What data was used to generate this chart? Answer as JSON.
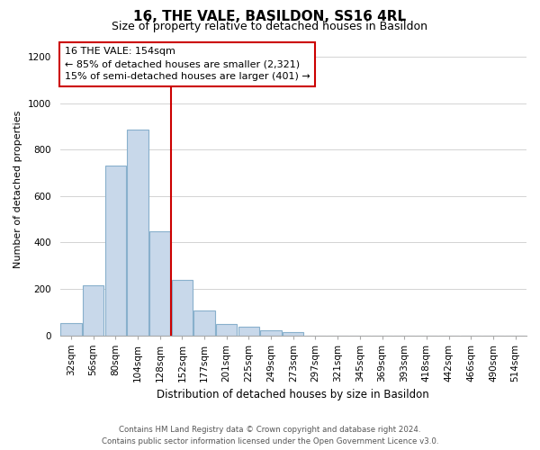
{
  "title": "16, THE VALE, BASILDON, SS16 4RL",
  "subtitle": "Size of property relative to detached houses in Basildon",
  "xlabel": "Distribution of detached houses by size in Basildon",
  "ylabel": "Number of detached properties",
  "bar_labels": [
    "32sqm",
    "56sqm",
    "80sqm",
    "104sqm",
    "128sqm",
    "152sqm",
    "177sqm",
    "201sqm",
    "225sqm",
    "249sqm",
    "273sqm",
    "297sqm",
    "321sqm",
    "345sqm",
    "369sqm",
    "393sqm",
    "418sqm",
    "442sqm",
    "466sqm",
    "490sqm",
    "514sqm"
  ],
  "bar_values": [
    52,
    215,
    730,
    885,
    448,
    238,
    105,
    50,
    38,
    20,
    12,
    0,
    0,
    0,
    0,
    0,
    0,
    0,
    0,
    0,
    0
  ],
  "bar_color": "#c8d8ea",
  "bar_edgecolor": "#88b0cc",
  "vline_idx": 5,
  "vline_color": "#cc0000",
  "annotation_title": "16 THE VALE: 154sqm",
  "annotation_line1": "← 85% of detached houses are smaller (2,321)",
  "annotation_line2": "15% of semi-detached houses are larger (401) →",
  "annotation_box_edgecolor": "#cc0000",
  "ylim": [
    0,
    1260
  ],
  "yticks": [
    0,
    200,
    400,
    600,
    800,
    1000,
    1200
  ],
  "footer_line1": "Contains HM Land Registry data © Crown copyright and database right 2024.",
  "footer_line2": "Contains public sector information licensed under the Open Government Licence v3.0.",
  "bg_color": "#ffffff",
  "grid_color": "#cccccc",
  "title_fontsize": 11,
  "subtitle_fontsize": 9,
  "ylabel_fontsize": 8,
  "xlabel_fontsize": 8.5,
  "tick_fontsize": 7.5,
  "annot_fontsize": 8
}
